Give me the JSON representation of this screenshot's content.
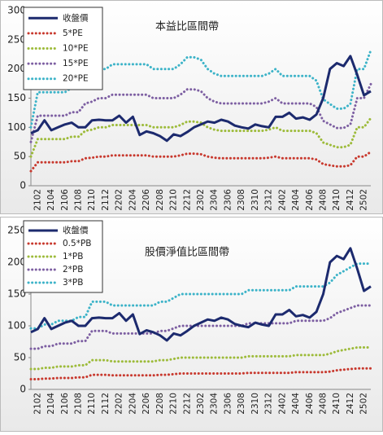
{
  "chart_data": [
    {
      "type": "line",
      "title": "本益比區間帶",
      "legend": "top-left",
      "grid": false,
      "categories": [
        null,
        "2102",
        null,
        "2104",
        null,
        "2106",
        null,
        "2108",
        null,
        "2110",
        null,
        "2112",
        null,
        "2202",
        null,
        "2204",
        null,
        "2206",
        null,
        "2208",
        null,
        "2210",
        null,
        "2212",
        null,
        "2302",
        null,
        "2304",
        null,
        "2306",
        null,
        "2308",
        null,
        "2310",
        null,
        "2312",
        null,
        "2402",
        null,
        "2404",
        null,
        "2406",
        null,
        "2408",
        null,
        "2410",
        null,
        "2412",
        null,
        "2502",
        null
      ],
      "ylim": [
        0,
        300
      ],
      "yticks": [
        0,
        50,
        100,
        150,
        200,
        250,
        300
      ],
      "series": [
        {
          "name": "收盤價",
          "color": "#1c2a6e",
          "style": "solid",
          "values": [
            90,
            95,
            112,
            95,
            100,
            105,
            108,
            100,
            100,
            112,
            113,
            112,
            112,
            120,
            108,
            118,
            87,
            93,
            90,
            85,
            77,
            88,
            85,
            92,
            100,
            105,
            110,
            108,
            113,
            110,
            103,
            100,
            98,
            105,
            102,
            100,
            118,
            118,
            125,
            115,
            117,
            113,
            122,
            150,
            200,
            210,
            205,
            222,
            190,
            155,
            162
          ]
        },
        {
          "name": "5*PE",
          "color": "#c8392e",
          "style": "dotted",
          "values": [
            25,
            40,
            40,
            40,
            40,
            40,
            42,
            42,
            47,
            48,
            50,
            50,
            52,
            52,
            52,
            52,
            52,
            52,
            50,
            50,
            50,
            50,
            52,
            55,
            55,
            54,
            50,
            48,
            47,
            47,
            47,
            47,
            47,
            47,
            47,
            48,
            50,
            47,
            47,
            47,
            47,
            47,
            45,
            37,
            35,
            33,
            33,
            35,
            50,
            50,
            58
          ]
        },
        {
          "name": "10*PE",
          "color": "#9dbb3a",
          "style": "dotted",
          "values": [
            50,
            80,
            80,
            80,
            80,
            80,
            84,
            84,
            94,
            96,
            100,
            100,
            104,
            104,
            104,
            104,
            104,
            104,
            100,
            100,
            100,
            100,
            104,
            110,
            110,
            108,
            100,
            96,
            94,
            94,
            94,
            94,
            94,
            94,
            94,
            96,
            100,
            94,
            94,
            94,
            94,
            94,
            90,
            74,
            70,
            66,
            66,
            70,
            100,
            100,
            116
          ]
        },
        {
          "name": "15*PE",
          "color": "#7d5fa2",
          "style": "dotted",
          "values": [
            75,
            120,
            120,
            120,
            120,
            120,
            126,
            126,
            141,
            144,
            150,
            150,
            156,
            156,
            156,
            156,
            156,
            156,
            150,
            150,
            150,
            150,
            156,
            165,
            165,
            162,
            150,
            144,
            141,
            141,
            141,
            141,
            141,
            141,
            141,
            144,
            150,
            141,
            141,
            141,
            141,
            141,
            135,
            111,
            105,
            99,
            99,
            105,
            150,
            150,
            174
          ]
        },
        {
          "name": "20*PE",
          "color": "#3cb3c8",
          "style": "dotted",
          "values": [
            100,
            160,
            160,
            160,
            160,
            160,
            168,
            168,
            188,
            192,
            200,
            200,
            208,
            208,
            208,
            208,
            208,
            208,
            200,
            200,
            200,
            200,
            208,
            220,
            220,
            216,
            200,
            192,
            188,
            188,
            188,
            188,
            188,
            188,
            188,
            192,
            200,
            188,
            188,
            188,
            188,
            188,
            180,
            148,
            140,
            132,
            132,
            140,
            200,
            200,
            232
          ]
        }
      ]
    },
    {
      "type": "line",
      "title": "股價淨值比區間帶",
      "legend": "top-left",
      "grid": false,
      "categories": [
        null,
        "2102",
        null,
        "2104",
        null,
        "2106",
        null,
        "2108",
        null,
        "2110",
        null,
        "2112",
        null,
        "2202",
        null,
        "2204",
        null,
        "2206",
        null,
        "2208",
        null,
        "2210",
        null,
        "2212",
        null,
        "2302",
        null,
        "2304",
        null,
        "2306",
        null,
        "2308",
        null,
        "2310",
        null,
        "2312",
        null,
        "2402",
        null,
        "2404",
        null,
        "2406",
        null,
        "2408",
        null,
        "2410",
        null,
        "2412",
        null,
        "2502",
        null
      ],
      "ylim": [
        0,
        250
      ],
      "yticks": [
        0,
        50,
        100,
        150,
        200,
        250
      ],
      "series": [
        {
          "name": "收盤價",
          "color": "#1c2a6e",
          "style": "solid",
          "values": [
            90,
            95,
            112,
            95,
            100,
            105,
            108,
            100,
            100,
            112,
            113,
            112,
            112,
            120,
            108,
            118,
            87,
            93,
            90,
            85,
            77,
            88,
            85,
            92,
            100,
            105,
            110,
            108,
            113,
            110,
            103,
            100,
            98,
            105,
            102,
            100,
            118,
            118,
            125,
            115,
            117,
            113,
            122,
            150,
            200,
            210,
            205,
            222,
            190,
            155,
            162
          ]
        },
        {
          "name": "0.5*PB",
          "color": "#c8392e",
          "style": "dotted",
          "values": [
            16,
            16,
            17,
            17,
            18,
            18,
            18,
            19,
            19,
            23,
            23,
            23,
            22,
            22,
            22,
            22,
            22,
            22,
            22,
            23,
            23,
            24,
            25,
            25,
            25,
            25,
            25,
            25,
            25,
            25,
            25,
            25,
            26,
            26,
            26,
            26,
            26,
            26,
            26,
            27,
            27,
            27,
            27,
            27,
            28,
            30,
            31,
            32,
            33,
            33,
            33
          ]
        },
        {
          "name": "1*PB",
          "color": "#9dbb3a",
          "style": "dotted",
          "values": [
            32,
            32,
            34,
            34,
            36,
            36,
            36,
            38,
            38,
            46,
            46,
            46,
            44,
            44,
            44,
            44,
            44,
            44,
            44,
            46,
            46,
            48,
            50,
            50,
            50,
            50,
            50,
            50,
            50,
            50,
            50,
            50,
            52,
            52,
            52,
            52,
            52,
            52,
            52,
            54,
            54,
            54,
            54,
            54,
            56,
            60,
            62,
            64,
            66,
            66,
            66
          ]
        },
        {
          "name": "2*PB",
          "color": "#7d5fa2",
          "style": "dotted",
          "values": [
            64,
            64,
            68,
            68,
            72,
            72,
            72,
            76,
            76,
            92,
            92,
            92,
            88,
            88,
            88,
            88,
            88,
            88,
            88,
            92,
            92,
            96,
            100,
            100,
            100,
            100,
            100,
            100,
            100,
            100,
            100,
            100,
            104,
            104,
            104,
            104,
            104,
            104,
            104,
            108,
            108,
            108,
            108,
            108,
            112,
            120,
            124,
            128,
            132,
            132,
            132
          ]
        },
        {
          "name": "3*PB",
          "color": "#3cb3c8",
          "style": "dotted",
          "values": [
            96,
            96,
            102,
            102,
            108,
            108,
            108,
            114,
            114,
            138,
            138,
            138,
            132,
            132,
            132,
            132,
            132,
            132,
            132,
            138,
            138,
            144,
            150,
            150,
            150,
            150,
            150,
            150,
            150,
            150,
            150,
            150,
            156,
            156,
            156,
            156,
            156,
            156,
            156,
            162,
            162,
            162,
            162,
            162,
            168,
            180,
            186,
            192,
            198,
            198,
            198
          ]
        }
      ]
    }
  ]
}
